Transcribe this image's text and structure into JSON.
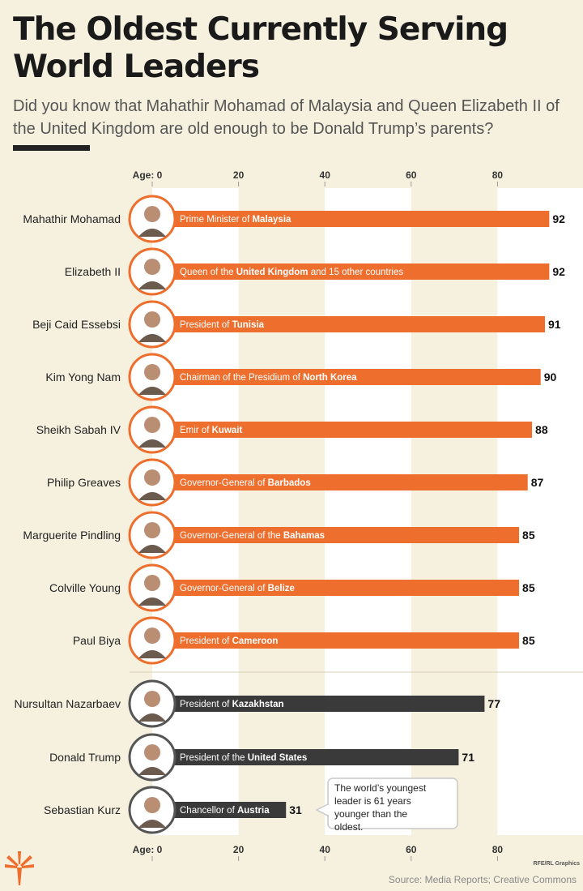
{
  "title": "The Oldest Currently Serving World Leaders",
  "subtitle": "Did you know that Mahathir Mohamad of Malaysia and Queen Elizabeth II of the United Kingdom are old enough to be Donald Trump’s parents?",
  "source": "Source: Media Reports; Creative Commons",
  "credit": "RFE/RL Graphics",
  "callout": "The world’s youngest leader is 61 years younger than the oldest.",
  "colors": {
    "orange": "#ee6e2d",
    "dark": "#3a3a3a",
    "background": "#f6f1de",
    "band": "#ffffff"
  },
  "chart_data": {
    "type": "bar",
    "orientation": "horizontal",
    "axis_label": "Age:",
    "xlim": [
      0,
      100
    ],
    "ticks": [
      0,
      20,
      40,
      60,
      80
    ],
    "grid": "alternating vertical bands",
    "rows": [
      {
        "name": "Mahathir Mohamad",
        "age": 92,
        "role": "Prime Minister of ",
        "country": "Malaysia",
        "suffix": "",
        "group": "orange"
      },
      {
        "name": "Elizabeth II",
        "age": 92,
        "role": "Queen of the ",
        "country": "United Kingdom",
        "suffix": " and 15 other countries",
        "group": "orange"
      },
      {
        "name": "Beji Caid Essebsi",
        "age": 91,
        "role": "President of ",
        "country": "Tunisia",
        "suffix": "",
        "group": "orange"
      },
      {
        "name": "Kim Yong Nam",
        "age": 90,
        "role": "Chairman of the Presidium of ",
        "country": "North Korea",
        "suffix": "",
        "group": "orange"
      },
      {
        "name": "Sheikh Sabah IV",
        "age": 88,
        "role": "Emir of ",
        "country": "Kuwait",
        "suffix": "",
        "group": "orange"
      },
      {
        "name": "Philip Greaves",
        "age": 87,
        "role": "Governor-General of ",
        "country": "Barbados",
        "suffix": "",
        "group": "orange"
      },
      {
        "name": "Marguerite Pindling",
        "age": 85,
        "role": "Governor-General of the ",
        "country": "Bahamas",
        "suffix": "",
        "group": "orange"
      },
      {
        "name": "Colville Young",
        "age": 85,
        "role": "Governor-General of ",
        "country": "Belize",
        "suffix": "",
        "group": "orange"
      },
      {
        "name": "Paul Biya",
        "age": 85,
        "role": "President of ",
        "country": "Cameroon",
        "suffix": "",
        "group": "orange"
      },
      {
        "name": "Nursultan Nazarbaev",
        "age": 77,
        "role": "President of ",
        "country": "Kazakhstan",
        "suffix": "",
        "group": "dark"
      },
      {
        "name": "Donald Trump",
        "age": 71,
        "role": "President of the ",
        "country": "United States",
        "suffix": "",
        "group": "dark"
      },
      {
        "name": "Sebastian Kurz",
        "age": 31,
        "role": "Chancellor of ",
        "country": "Austria",
        "suffix": "",
        "group": "dark"
      }
    ]
  }
}
